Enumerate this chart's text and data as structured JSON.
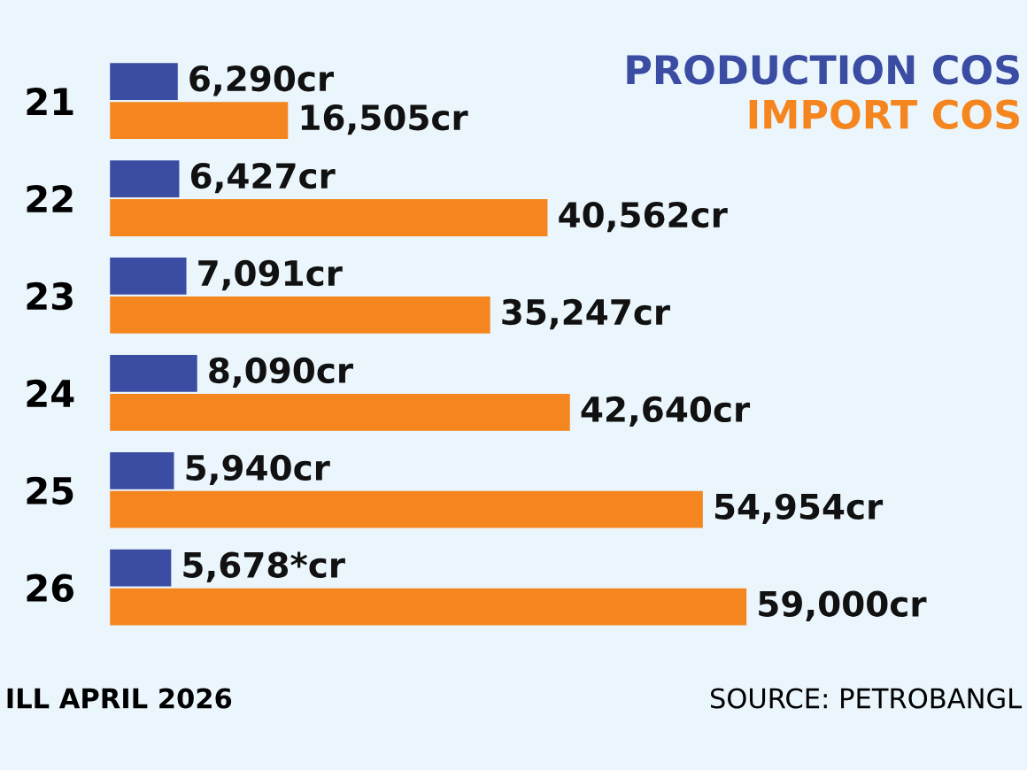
{
  "chart_data": {
    "type": "bar",
    "orientation": "horizontal",
    "categories": [
      "21",
      "22",
      "23",
      "24",
      "25",
      "26"
    ],
    "series": [
      {
        "name": "PRODUCTION COS",
        "color": "#3b4ca3",
        "values": [
          6290,
          6427,
          7091,
          8090,
          5940,
          5678
        ],
        "value_labels": [
          "6,290cr",
          "6,427cr",
          "7,091cr",
          "8,090cr",
          "5,940cr",
          "5,678*cr"
        ]
      },
      {
        "name": "IMPORT COS",
        "color": "#f5861f",
        "values": [
          16505,
          40562,
          35247,
          42640,
          54954,
          59000
        ],
        "value_labels": [
          "16,505cr",
          "40,562cr",
          "35,247cr",
          "42,640cr",
          "54,954cr",
          "59,000cr"
        ]
      }
    ],
    "xlim": [
      0,
      85000
    ],
    "legend": "top right",
    "grid": false,
    "annotations": [
      "ILL APRIL 2026",
      "SOURCE: PETROBANGL"
    ]
  }
}
